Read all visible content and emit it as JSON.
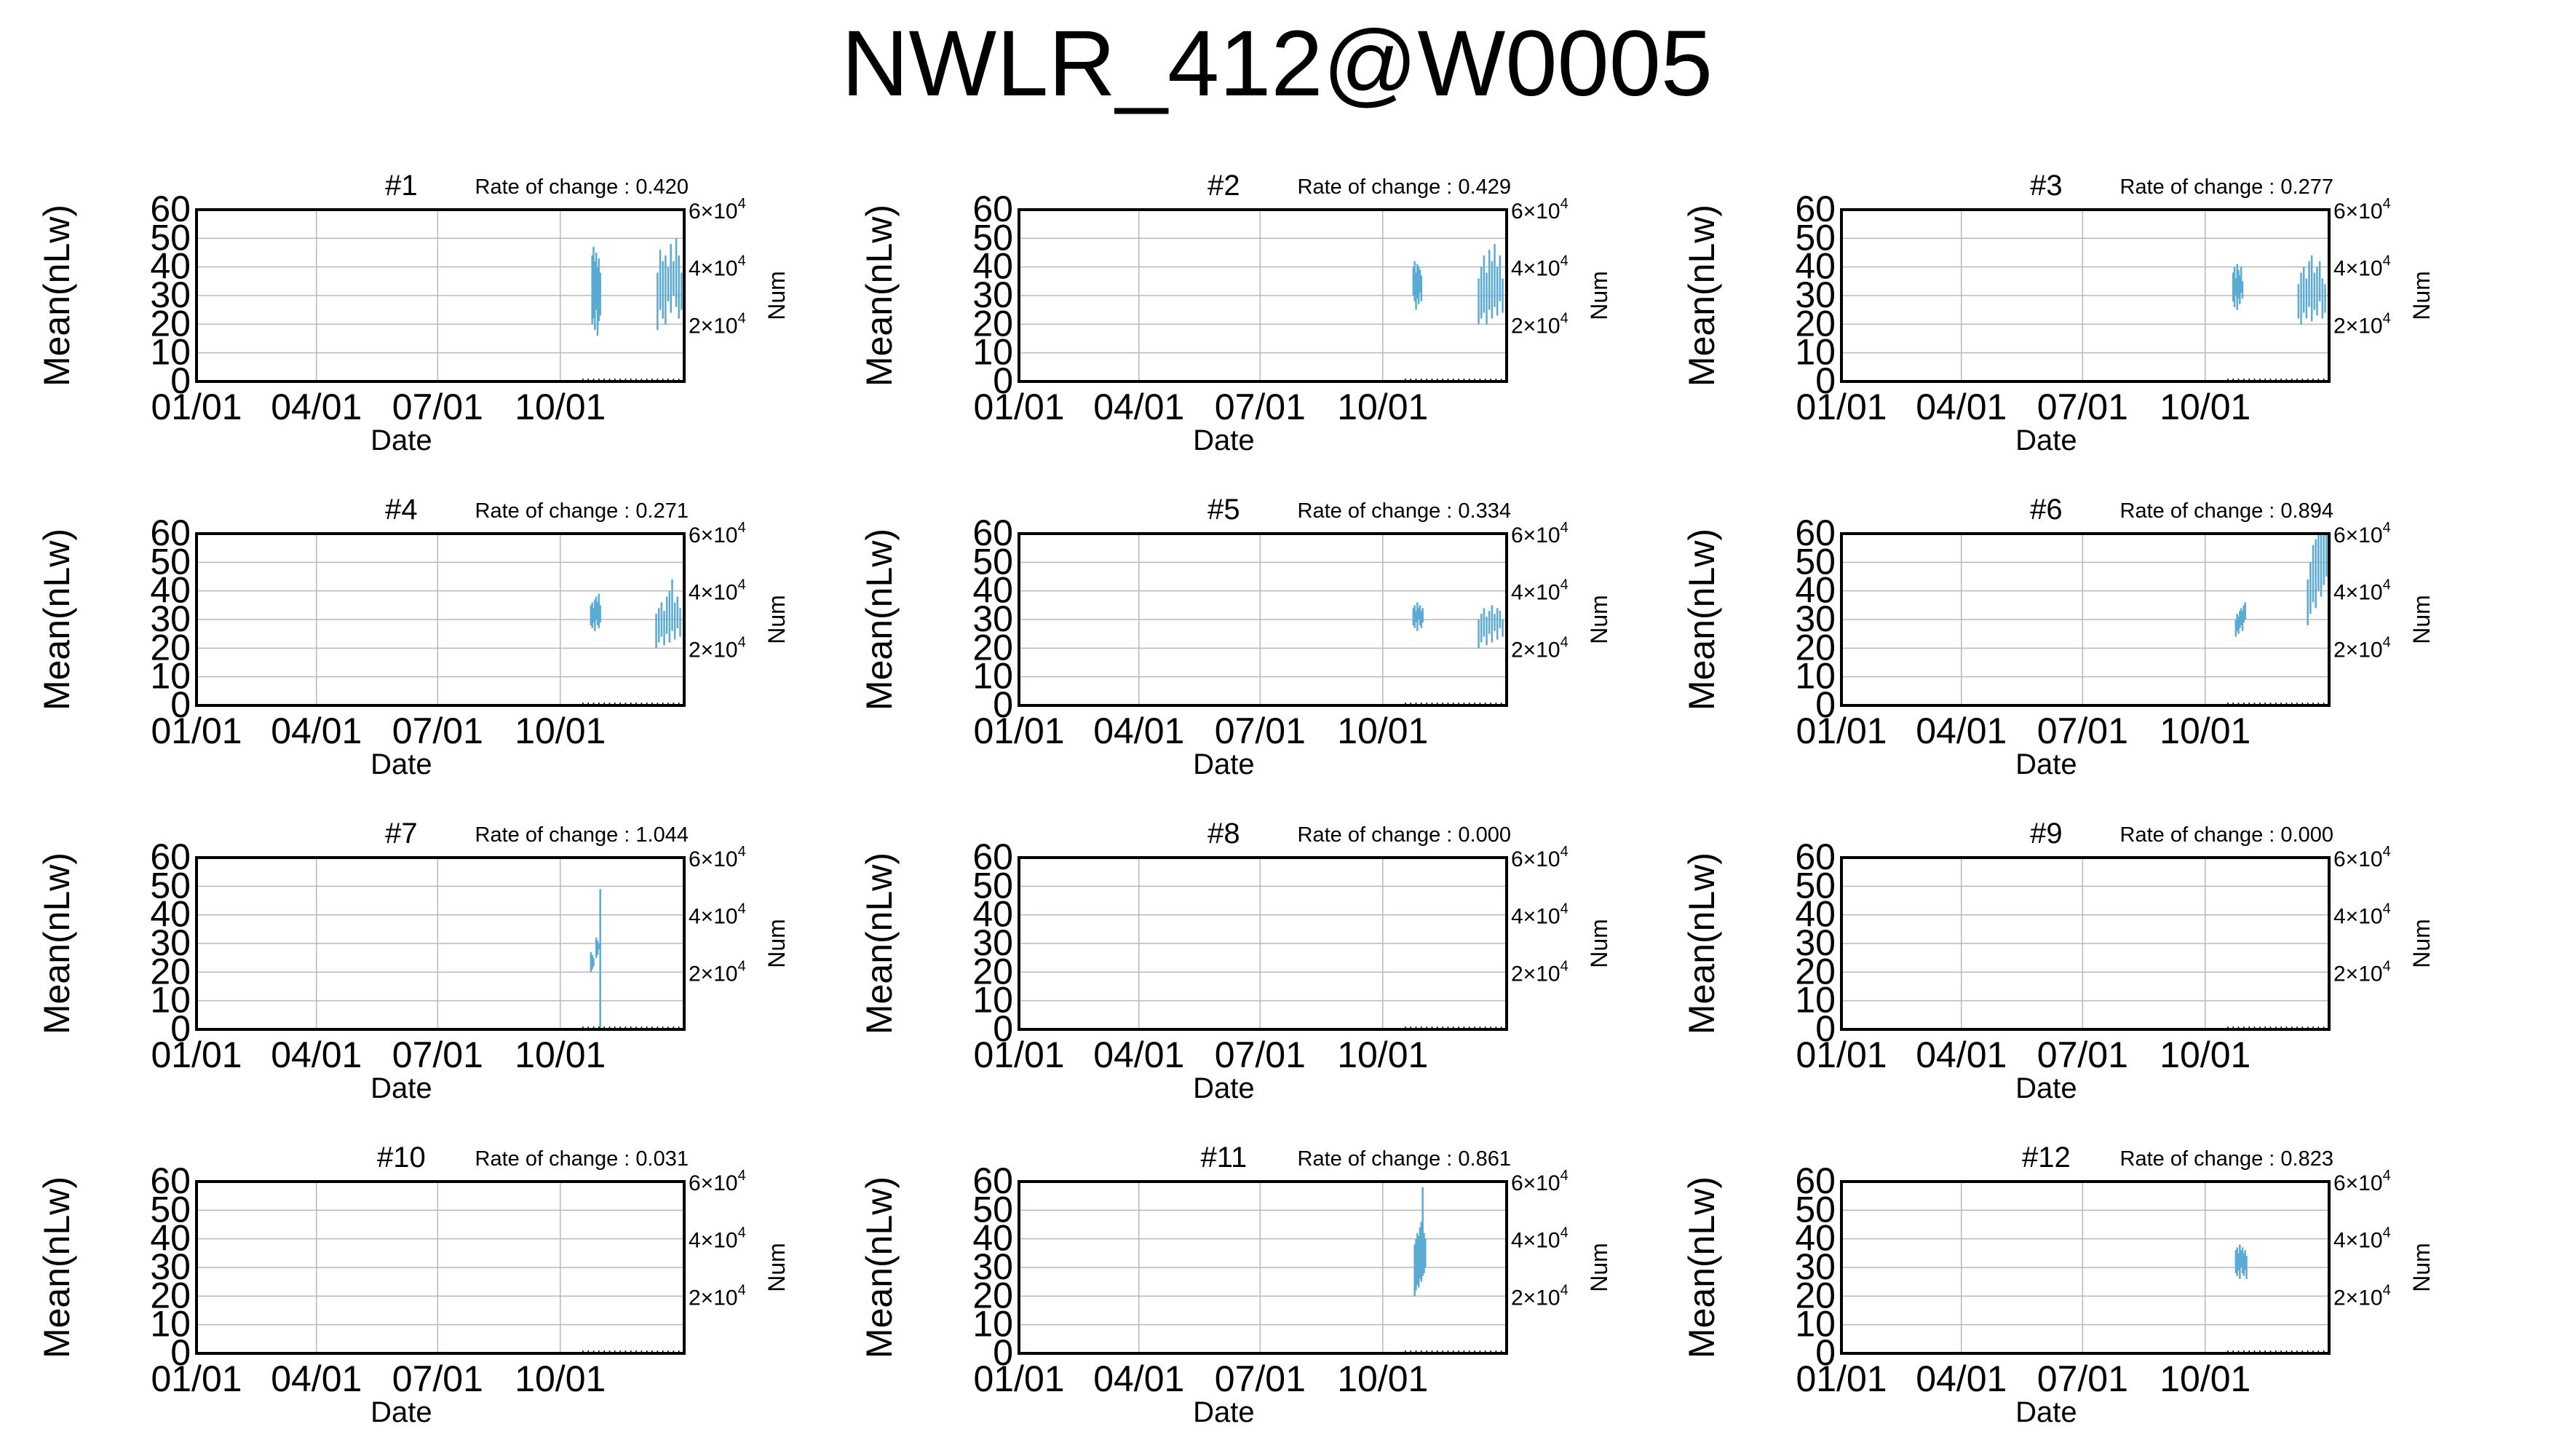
{
  "title": "NWLR_412@W0005",
  "colors": {
    "data": "#5aaad4",
    "axis": "#000000",
    "grid": "#b8b8b8"
  },
  "chart_data": [
    {
      "type": "line",
      "title": "#1",
      "rate_label": "Rate of change : 0.420",
      "xlabel": "Date",
      "ylabel": "Mean(nLw)",
      "y2label": "Num",
      "x_ticks": [
        "01/01",
        "04/01",
        "07/01",
        "10/01"
      ],
      "y_ticks": [
        "0",
        "10",
        "20",
        "30",
        "40",
        "50",
        "60"
      ],
      "ylim": [
        0,
        60
      ],
      "y2_ticks": [
        {
          "base": "2×10",
          "exp": "4"
        },
        {
          "base": "4×10",
          "exp": "4"
        },
        {
          "base": "6×10",
          "exp": "4"
        }
      ],
      "grid": true,
      "series": [
        {
          "x": [
            297,
            298,
            299,
            300,
            301,
            302,
            303
          ],
          "low": [
            20,
            22,
            18,
            25,
            16,
            21,
            23
          ],
          "high": [
            44,
            47,
            42,
            45,
            40,
            43,
            38
          ]
        },
        {
          "x": [
            346,
            348,
            350,
            352,
            354,
            356,
            358,
            360,
            362,
            364
          ],
          "low": [
            18,
            25,
            22,
            20,
            28,
            24,
            30,
            26,
            22,
            25
          ],
          "high": [
            38,
            46,
            42,
            44,
            40,
            48,
            42,
            50,
            44,
            38
          ]
        }
      ]
    },
    {
      "type": "line",
      "title": "#2",
      "rate_label": "Rate of change : 0.429",
      "xlabel": "Date",
      "ylabel": "Mean(nLw)",
      "y2label": "Num",
      "x_ticks": [
        "01/01",
        "04/01",
        "07/01",
        "10/01"
      ],
      "y_ticks": [
        "0",
        "10",
        "20",
        "30",
        "40",
        "50",
        "60"
      ],
      "ylim": [
        0,
        60
      ],
      "y2_ticks": [
        {
          "base": "2×10",
          "exp": "4"
        },
        {
          "base": "4×10",
          "exp": "4"
        },
        {
          "base": "6×10",
          "exp": "4"
        }
      ],
      "grid": true,
      "series": [
        {
          "x": [
            296,
            297,
            298,
            299,
            300,
            301,
            302
          ],
          "low": [
            30,
            28,
            25,
            29,
            27,
            31,
            28
          ],
          "high": [
            40,
            42,
            38,
            41,
            40,
            39,
            37
          ]
        },
        {
          "x": [
            345,
            347,
            349,
            351,
            353,
            355,
            357,
            359,
            361,
            363
          ],
          "low": [
            20,
            22,
            24,
            20,
            25,
            22,
            26,
            23,
            28,
            24
          ],
          "high": [
            36,
            40,
            44,
            38,
            46,
            42,
            48,
            40,
            44,
            36
          ]
        }
      ]
    },
    {
      "type": "line",
      "title": "#3",
      "rate_label": "Rate of change : 0.277",
      "xlabel": "Date",
      "ylabel": "Mean(nLw)",
      "y2label": "Num",
      "x_ticks": [
        "01/01",
        "04/01",
        "07/01",
        "10/01"
      ],
      "y_ticks": [
        "0",
        "10",
        "20",
        "30",
        "40",
        "50",
        "60"
      ],
      "ylim": [
        0,
        60
      ],
      "y2_ticks": [
        {
          "base": "2×10",
          "exp": "4"
        },
        {
          "base": "4×10",
          "exp": "4"
        },
        {
          "base": "6×10",
          "exp": "4"
        }
      ],
      "grid": true,
      "series": [
        {
          "x": [
            294,
            295,
            296,
            297,
            298,
            299,
            300,
            301
          ],
          "low": [
            28,
            26,
            30,
            25,
            29,
            27,
            31,
            29
          ],
          "high": [
            38,
            40,
            36,
            41,
            39,
            37,
            40,
            35
          ]
        },
        {
          "x": [
            343,
            345,
            347,
            349,
            351,
            353,
            355,
            357,
            359,
            361,
            363
          ],
          "low": [
            22,
            20,
            24,
            22,
            26,
            21,
            25,
            23,
            28,
            22,
            24
          ],
          "high": [
            34,
            38,
            40,
            36,
            42,
            44,
            38,
            40,
            42,
            36,
            34
          ]
        }
      ]
    },
    {
      "type": "line",
      "title": "#4",
      "rate_label": "Rate of change : 0.271",
      "xlabel": "Date",
      "ylabel": "Mean(nLw)",
      "y2label": "Num",
      "x_ticks": [
        "01/01",
        "04/01",
        "07/01",
        "10/01"
      ],
      "y_ticks": [
        "0",
        "10",
        "20",
        "30",
        "40",
        "50",
        "60"
      ],
      "ylim": [
        0,
        60
      ],
      "y2_ticks": [
        {
          "base": "2×10",
          "exp": "4"
        },
        {
          "base": "4×10",
          "exp": "4"
        },
        {
          "base": "6×10",
          "exp": "4"
        }
      ],
      "grid": true,
      "series": [
        {
          "x": [
            296,
            297,
            298,
            299,
            300,
            301,
            302,
            303
          ],
          "low": [
            28,
            27,
            29,
            26,
            30,
            28,
            27,
            29
          ],
          "high": [
            35,
            36,
            34,
            37,
            38,
            36,
            39,
            35
          ]
        },
        {
          "x": [
            345,
            347,
            349,
            351,
            353,
            355,
            357,
            359,
            361,
            363
          ],
          "low": [
            20,
            22,
            24,
            21,
            25,
            22,
            26,
            23,
            27,
            24
          ],
          "high": [
            32,
            34,
            36,
            33,
            38,
            40,
            44,
            36,
            38,
            34
          ]
        }
      ]
    },
    {
      "type": "line",
      "title": "#5",
      "rate_label": "Rate of change : 0.334",
      "xlabel": "Date",
      "ylabel": "Mean(nLw)",
      "y2label": "Num",
      "x_ticks": [
        "01/01",
        "04/01",
        "07/01",
        "10/01"
      ],
      "y_ticks": [
        "0",
        "10",
        "20",
        "30",
        "40",
        "50",
        "60"
      ],
      "ylim": [
        0,
        60
      ],
      "y2_ticks": [
        {
          "base": "2×10",
          "exp": "4"
        },
        {
          "base": "4×10",
          "exp": "4"
        },
        {
          "base": "6×10",
          "exp": "4"
        }
      ],
      "grid": true,
      "series": [
        {
          "x": [
            296,
            297,
            298,
            299,
            300,
            301,
            302,
            303
          ],
          "low": [
            28,
            27,
            29,
            26,
            30,
            28,
            27,
            29
          ],
          "high": [
            34,
            35,
            33,
            36,
            34,
            35,
            33,
            34
          ]
        },
        {
          "x": [
            345,
            347,
            349,
            351,
            353,
            355,
            357,
            359,
            361,
            363
          ],
          "low": [
            20,
            22,
            24,
            21,
            25,
            22,
            26,
            23,
            27,
            24
          ],
          "high": [
            30,
            32,
            34,
            31,
            33,
            35,
            32,
            34,
            33,
            30
          ]
        }
      ]
    },
    {
      "type": "line",
      "title": "#6",
      "rate_label": "Rate of change : 0.894",
      "xlabel": "Date",
      "ylabel": "Mean(nLw)",
      "y2label": "Num",
      "x_ticks": [
        "01/01",
        "04/01",
        "07/01",
        "10/01"
      ],
      "y_ticks": [
        "0",
        "10",
        "20",
        "30",
        "40",
        "50",
        "60"
      ],
      "ylim": [
        0,
        60
      ],
      "y2_ticks": [
        {
          "base": "2×10",
          "exp": "4"
        },
        {
          "base": "4×10",
          "exp": "4"
        },
        {
          "base": "6×10",
          "exp": "4"
        }
      ],
      "grid": true,
      "series": [
        {
          "x": [
            296,
            297,
            298,
            299,
            300,
            301,
            302,
            303
          ],
          "low": [
            24,
            26,
            25,
            27,
            28,
            26,
            29,
            30
          ],
          "high": [
            30,
            32,
            31,
            33,
            34,
            33,
            35,
            36
          ]
        },
        {
          "x": [
            350,
            352,
            354,
            356,
            358,
            360,
            362,
            364
          ],
          "low": [
            28,
            32,
            36,
            34,
            40,
            38,
            42,
            45
          ],
          "high": [
            44,
            50,
            56,
            58,
            60,
            60,
            60,
            60
          ]
        }
      ]
    },
    {
      "type": "line",
      "title": "#7",
      "rate_label": "Rate of change : 1.044",
      "xlabel": "Date",
      "ylabel": "Mean(nLw)",
      "y2label": "Num",
      "x_ticks": [
        "01/01",
        "04/01",
        "07/01",
        "10/01"
      ],
      "y_ticks": [
        "0",
        "10",
        "20",
        "30",
        "40",
        "50",
        "60"
      ],
      "ylim": [
        0,
        60
      ],
      "y2_ticks": [
        {
          "base": "2×10",
          "exp": "4"
        },
        {
          "base": "4×10",
          "exp": "4"
        },
        {
          "base": "6×10",
          "exp": "4"
        }
      ],
      "grid": true,
      "series": [
        {
          "x": [
            296,
            297,
            298,
            300,
            301,
            302,
            303
          ],
          "low": [
            20,
            21,
            22,
            25,
            26,
            28,
            0
          ],
          "high": [
            27,
            26,
            25,
            32,
            31,
            30,
            49
          ]
        }
      ]
    },
    {
      "type": "line",
      "title": "#8",
      "rate_label": "Rate of change : 0.000",
      "xlabel": "Date",
      "ylabel": "Mean(nLw)",
      "y2label": "Num",
      "x_ticks": [
        "01/01",
        "04/01",
        "07/01",
        "10/01"
      ],
      "y_ticks": [
        "0",
        "10",
        "20",
        "30",
        "40",
        "50",
        "60"
      ],
      "ylim": [
        0,
        60
      ],
      "y2_ticks": [
        {
          "base": "2×10",
          "exp": "4"
        },
        {
          "base": "4×10",
          "exp": "4"
        },
        {
          "base": "6×10",
          "exp": "4"
        }
      ],
      "grid": true,
      "series": []
    },
    {
      "type": "line",
      "title": "#9",
      "rate_label": "Rate of change : 0.000",
      "xlabel": "Date",
      "ylabel": "Mean(nLw)",
      "y2label": "Num",
      "x_ticks": [
        "01/01",
        "04/01",
        "07/01",
        "10/01"
      ],
      "y_ticks": [
        "0",
        "10",
        "20",
        "30",
        "40",
        "50",
        "60"
      ],
      "ylim": [
        0,
        60
      ],
      "y2_ticks": [
        {
          "base": "2×10",
          "exp": "4"
        },
        {
          "base": "4×10",
          "exp": "4"
        },
        {
          "base": "6×10",
          "exp": "4"
        }
      ],
      "grid": true,
      "series": []
    },
    {
      "type": "line",
      "title": "#10",
      "rate_label": "Rate of change : 0.031",
      "xlabel": "Date",
      "ylabel": "Mean(nLw)",
      "y2label": "Num",
      "x_ticks": [
        "01/01",
        "04/01",
        "07/01",
        "10/01"
      ],
      "y_ticks": [
        "0",
        "10",
        "20",
        "30",
        "40",
        "50",
        "60"
      ],
      "ylim": [
        0,
        60
      ],
      "y2_ticks": [
        {
          "base": "2×10",
          "exp": "4"
        },
        {
          "base": "4×10",
          "exp": "4"
        },
        {
          "base": "6×10",
          "exp": "4"
        }
      ],
      "grid": true,
      "series": []
    },
    {
      "type": "line",
      "title": "#11",
      "rate_label": "Rate of change : 0.861",
      "xlabel": "Date",
      "ylabel": "Mean(nLw)",
      "y2label": "Num",
      "x_ticks": [
        "01/01",
        "04/01",
        "07/01",
        "10/01"
      ],
      "y_ticks": [
        "0",
        "10",
        "20",
        "30",
        "40",
        "50",
        "60"
      ],
      "ylim": [
        0,
        60
      ],
      "y2_ticks": [
        {
          "base": "2×10",
          "exp": "4"
        },
        {
          "base": "4×10",
          "exp": "4"
        },
        {
          "base": "6×10",
          "exp": "4"
        }
      ],
      "grid": true,
      "series": [
        {
          "x": [
            297,
            298,
            299,
            300,
            301,
            302,
            303,
            304,
            305
          ],
          "low": [
            20,
            22,
            24,
            23,
            26,
            25,
            27,
            28,
            30
          ],
          "high": [
            38,
            40,
            42,
            41,
            44,
            46,
            58,
            42,
            40
          ]
        }
      ]
    },
    {
      "type": "line",
      "title": "#12",
      "rate_label": "Rate of change : 0.823",
      "xlabel": "Date",
      "ylabel": "Mean(nLw)",
      "y2label": "Num",
      "x_ticks": [
        "01/01",
        "04/01",
        "07/01",
        "10/01"
      ],
      "y_ticks": [
        "0",
        "10",
        "20",
        "30",
        "40",
        "50",
        "60"
      ],
      "ylim": [
        0,
        60
      ],
      "y2_ticks": [
        {
          "base": "2×10",
          "exp": "4"
        },
        {
          "base": "4×10",
          "exp": "4"
        },
        {
          "base": "6×10",
          "exp": "4"
        }
      ],
      "grid": true,
      "series": [
        {
          "x": [
            296,
            297,
            298,
            299,
            300,
            301,
            302,
            303,
            304
          ],
          "low": [
            28,
            27,
            29,
            26,
            30,
            28,
            27,
            29,
            26
          ],
          "high": [
            36,
            37,
            35,
            38,
            36,
            37,
            35,
            36,
            34
          ]
        }
      ]
    }
  ]
}
